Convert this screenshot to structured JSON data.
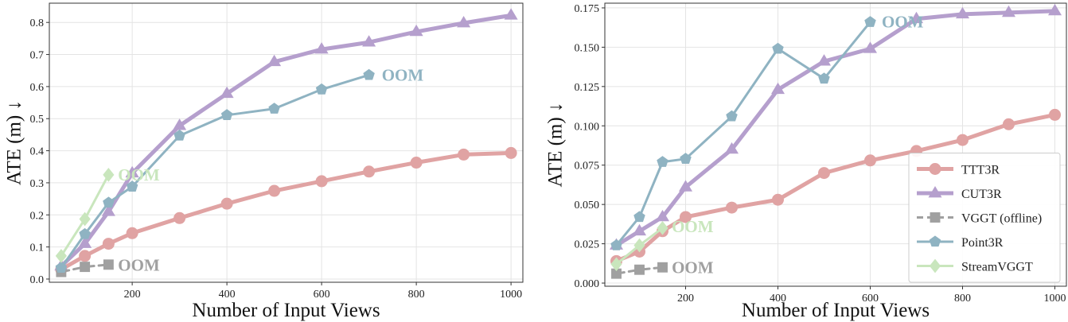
{
  "chart_data": [
    {
      "type": "line",
      "xlabel": "Number of Input Views",
      "ylabel": "ATE (m)",
      "ylabel_arrow": "↓",
      "xlim": [
        25,
        1025
      ],
      "ylim": [
        -0.01,
        0.86
      ],
      "xticks": [
        200,
        400,
        600,
        800,
        1000
      ],
      "xtick_labels": [
        "200",
        "400",
        "600",
        "800",
        "1000"
      ],
      "yticks": [
        0.0,
        0.1,
        0.2,
        0.3,
        0.4,
        0.5,
        0.6,
        0.7,
        0.8
      ],
      "ytick_labels": [
        "0.0",
        "0.1",
        "0.2",
        "0.3",
        "0.4",
        "0.5",
        "0.6",
        "0.7",
        "0.8"
      ],
      "grid": true,
      "legend": false,
      "series": [
        {
          "name": "TTT3R",
          "color": "#e0a3a3",
          "marker": "circle",
          "dashed": false,
          "x": [
            50,
            100,
            150,
            200,
            300,
            400,
            500,
            600,
            700,
            800,
            900,
            1000
          ],
          "y": [
            0.03,
            0.072,
            0.11,
            0.143,
            0.19,
            0.235,
            0.275,
            0.305,
            0.335,
            0.363,
            0.388,
            0.393
          ]
        },
        {
          "name": "CUT3R",
          "color": "#b59fcd",
          "marker": "triangle",
          "dashed": false,
          "x": [
            50,
            100,
            150,
            200,
            300,
            400,
            500,
            600,
            700,
            800,
            900,
            1000
          ],
          "y": [
            0.04,
            0.11,
            0.21,
            0.33,
            0.478,
            0.578,
            0.677,
            0.716,
            0.738,
            0.771,
            0.798,
            0.822
          ]
        },
        {
          "name": "VGGT (offline)",
          "color": "#a0a0a0",
          "marker": "square",
          "dashed": true,
          "x": [
            50,
            100,
            150
          ],
          "y": [
            0.022,
            0.038,
            0.045
          ]
        },
        {
          "name": "Point3R",
          "color": "#8fb3c2",
          "marker": "pentagon",
          "dashed": false,
          "x": [
            50,
            100,
            150,
            200,
            300,
            400,
            500,
            600,
            700
          ],
          "y": [
            0.035,
            0.14,
            0.238,
            0.288,
            0.447,
            0.511,
            0.531,
            0.591,
            0.636
          ]
        },
        {
          "name": "StreamVGGT",
          "color": "#c9e6bd",
          "marker": "diamond",
          "dashed": false,
          "x": [
            50,
            100,
            150
          ],
          "y": [
            0.072,
            0.187,
            0.325
          ]
        }
      ],
      "annotations": [
        {
          "text": "OOM",
          "x": 727,
          "y": 0.636,
          "color": "#8fb3c2"
        },
        {
          "text": "OOM",
          "x": 170,
          "y": 0.325,
          "color": "#c9e6bd"
        },
        {
          "text": "OOM",
          "x": 170,
          "y": 0.043,
          "color": "#a0a0a0"
        }
      ]
    },
    {
      "type": "line",
      "xlabel": "Number of Input Views",
      "ylabel": "ATE (m)",
      "ylabel_arrow": "↓",
      "xlim": [
        25,
        1025
      ],
      "ylim": [
        -0.002,
        0.178
      ],
      "xticks": [
        200,
        400,
        600,
        800,
        1000
      ],
      "xtick_labels": [
        "200",
        "400",
        "600",
        "800",
        "1000"
      ],
      "yticks": [
        0.0,
        0.025,
        0.05,
        0.075,
        0.1,
        0.125,
        0.15,
        0.175
      ],
      "ytick_labels": [
        "0.000",
        "0.025",
        "0.050",
        "0.075",
        "0.100",
        "0.125",
        "0.150",
        "0.175"
      ],
      "grid": true,
      "legend": true,
      "legend_position": "bottom-right",
      "series": [
        {
          "name": "TTT3R",
          "color": "#e0a3a3",
          "marker": "circle",
          "dashed": false,
          "x": [
            50,
            100,
            150,
            200,
            300,
            400,
            500,
            600,
            700,
            800,
            900,
            1000
          ],
          "y": [
            0.014,
            0.02,
            0.033,
            0.042,
            0.048,
            0.053,
            0.07,
            0.078,
            0.084,
            0.091,
            0.101,
            0.107
          ]
        },
        {
          "name": "CUT3R",
          "color": "#b59fcd",
          "marker": "triangle",
          "dashed": false,
          "x": [
            50,
            100,
            150,
            200,
            300,
            400,
            500,
            600,
            700,
            800,
            900,
            1000
          ],
          "y": [
            0.024,
            0.033,
            0.042,
            0.061,
            0.085,
            0.123,
            0.141,
            0.149,
            0.168,
            0.171,
            0.172,
            0.173
          ]
        },
        {
          "name": "VGGT (offline)",
          "color": "#a0a0a0",
          "marker": "square",
          "dashed": true,
          "x": [
            50,
            100,
            150
          ],
          "y": [
            0.006,
            0.0085,
            0.01
          ]
        },
        {
          "name": "Point3R",
          "color": "#8fb3c2",
          "marker": "pentagon",
          "dashed": false,
          "x": [
            50,
            100,
            150,
            200,
            300,
            400,
            500,
            600
          ],
          "y": [
            0.024,
            0.042,
            0.077,
            0.079,
            0.106,
            0.149,
            0.13,
            0.166
          ]
        },
        {
          "name": "StreamVGGT",
          "color": "#c9e6bd",
          "marker": "diamond",
          "dashed": false,
          "x": [
            50,
            100,
            150
          ],
          "y": [
            0.012,
            0.024,
            0.035
          ]
        }
      ],
      "annotations": [
        {
          "text": "OOM",
          "x": 625,
          "y": 0.166,
          "color": "#8fb3c2"
        },
        {
          "text": "OOM",
          "x": 170,
          "y": 0.036,
          "color": "#c9e6bd"
        },
        {
          "text": "OOM",
          "x": 170,
          "y": 0.01,
          "color": "#a0a0a0"
        }
      ]
    }
  ]
}
